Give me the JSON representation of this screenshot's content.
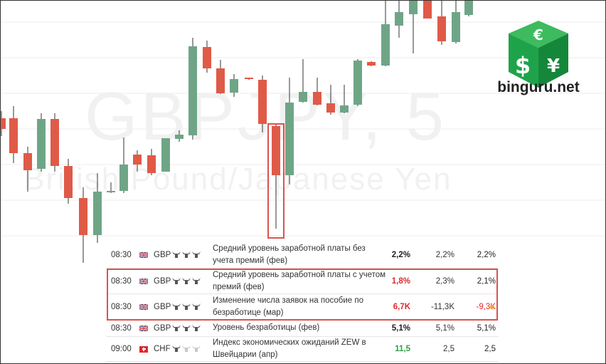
{
  "chart": {
    "watermark_symbol": "GBPJPY, 5",
    "watermark_name": "British Pound/Japanese Yen",
    "colors": {
      "up": "#6fa587",
      "down": "#e05a48",
      "grid": "#eeeeee"
    }
  },
  "logo": {
    "text": "binguru.net",
    "icon": "currency-dice-logo",
    "color": "#1fa34a"
  },
  "calendar": {
    "rows": [
      {
        "time": "08:30",
        "flag": "uk-flag-icon",
        "currency": "GBP",
        "importance": 3,
        "importance_max": 3,
        "event": "Средний уровень заработной платы без учета премий (фев)",
        "actual": "2,2%",
        "actual_color": "#222222",
        "forecast": "2,2%",
        "previous": "2,2%",
        "previous_color": "#222222",
        "highlighted": false,
        "dot": false
      },
      {
        "time": "08:30",
        "flag": "uk-flag-icon",
        "currency": "GBP",
        "importance": 3,
        "importance_max": 3,
        "event": "Средний уровень заработной платы с учетом премий (фев)",
        "actual": "1,8%",
        "actual_color": "#e0282e",
        "forecast": "2,3%",
        "previous": "2,1%",
        "previous_color": "#222222",
        "highlighted": true,
        "dot": false
      },
      {
        "time": "08:30",
        "flag": "uk-flag-icon",
        "currency": "GBP",
        "importance": 3,
        "importance_max": 3,
        "event": "Изменение числа заявок на пособие по безработице (мар)",
        "actual": "6,7K",
        "actual_color": "#e0282e",
        "forecast": "-11,3K",
        "previous": "-9,3K",
        "previous_color": "#e0282e",
        "highlighted": true,
        "dot": true
      },
      {
        "time": "08:30",
        "flag": "uk-flag-icon",
        "currency": "GBP",
        "importance": 3,
        "importance_max": 3,
        "event": "Уровень безработицы (фев)",
        "actual": "5,1%",
        "actual_color": "#222222",
        "forecast": "5,1%",
        "previous": "5,1%",
        "previous_color": "#222222",
        "highlighted": false,
        "dot": false
      },
      {
        "time": "09:00",
        "flag": "swiss-flag-icon",
        "currency": "CHF",
        "importance": 1,
        "importance_max": 3,
        "event": "Индекс экономических ожиданий ZEW в Швейцарии (апр)",
        "actual": "11,5",
        "actual_color": "#2ea043",
        "forecast": "2,5",
        "previous": "2,5",
        "previous_color": "#222222",
        "highlighted": false,
        "dot": false
      }
    ]
  }
}
